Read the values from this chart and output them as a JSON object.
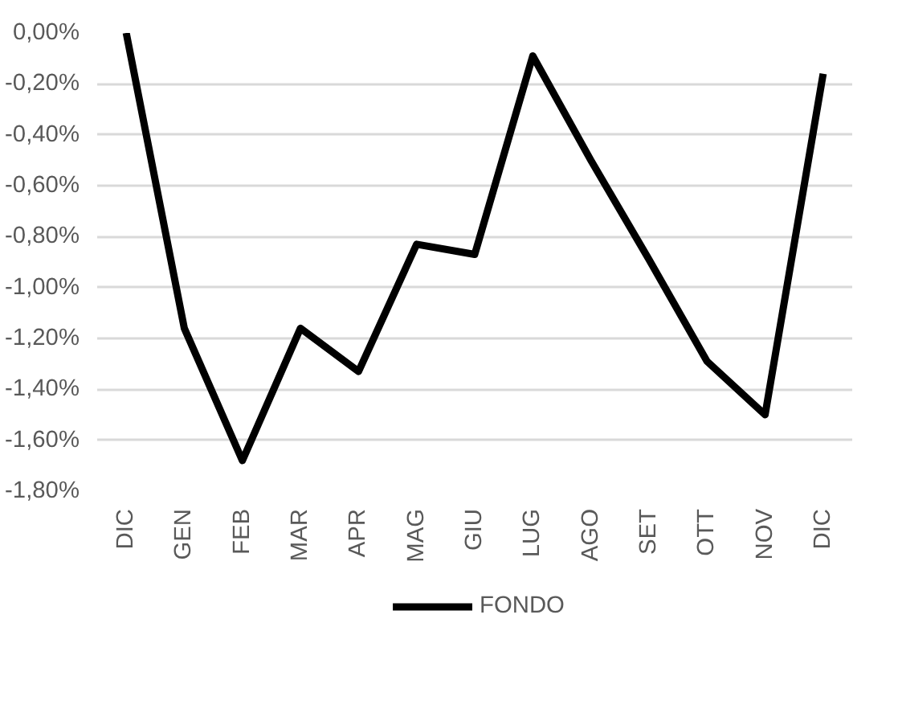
{
  "chart_data": {
    "type": "line",
    "categories": [
      "DIC",
      "GEN",
      "FEB",
      "MAR",
      "APR",
      "MAG",
      "GIU",
      "LUG",
      "AGO",
      "SET",
      "OTT",
      "NOV",
      "DIC"
    ],
    "series": [
      {
        "name": "FONDO",
        "color": "#000000",
        "values": [
          0.0,
          -1.16,
          -1.68,
          -1.16,
          -1.33,
          -0.83,
          -0.87,
          -0.09,
          -0.5,
          -0.89,
          -1.29,
          -1.5,
          -0.16
        ]
      }
    ],
    "ylim": [
      -1.8,
      0.0
    ],
    "yticks": [
      {
        "value": 0.0,
        "label": "0,00%"
      },
      {
        "value": -0.2,
        "label": "-0,20%"
      },
      {
        "value": -0.4,
        "label": "-0,40%"
      },
      {
        "value": -0.6,
        "label": "-0,60%"
      },
      {
        "value": -0.8,
        "label": "-0,80%"
      },
      {
        "value": -1.0,
        "label": "-1,00%"
      },
      {
        "value": -1.2,
        "label": "-1,20%"
      },
      {
        "value": -1.4,
        "label": "-1,40%"
      },
      {
        "value": -1.6,
        "label": "-1,60%"
      },
      {
        "value": -1.8,
        "label": "-1,80%"
      }
    ],
    "grid": "y",
    "legend": "bottom",
    "marker": "none",
    "line_style": "solid"
  }
}
